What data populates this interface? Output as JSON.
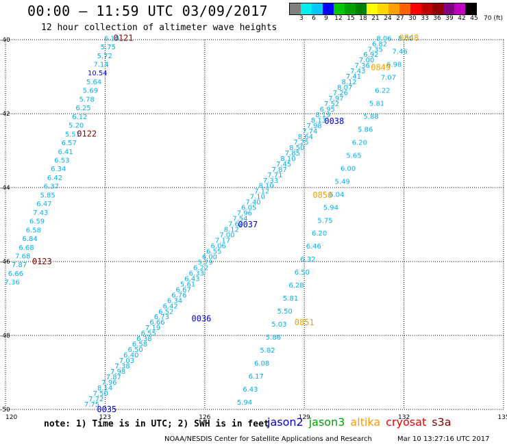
{
  "header": {
    "title": "00:00 – 11:59 UTC 03/09/2017",
    "subtitle": "12 hour collection of altimeter wave heights"
  },
  "colorbar": {
    "colors": [
      "#808080",
      "#00eeee",
      "#00c8ff",
      "#0000ff",
      "#00c800",
      "#00a000",
      "#008000",
      "#ffff00",
      "#ffd700",
      "#ffa000",
      "#ff6000",
      "#ff0000",
      "#c00000",
      "#900000",
      "#800080",
      "#c000c0",
      "#000000"
    ],
    "labels": [
      "3",
      "6",
      "9",
      "12",
      "15",
      "18",
      "21",
      "24",
      "27",
      "30",
      "33",
      "36",
      "39",
      "42",
      "45",
      "70 (ft)"
    ]
  },
  "axes": {
    "x_ticks": [
      "120",
      "123",
      "126",
      "129",
      "132",
      "135"
    ],
    "y_ticks": [
      "-40",
      "-42",
      "-44",
      "-46",
      "-48",
      "-50"
    ]
  },
  "chart_data": {
    "type": "map",
    "grid": true,
    "xlim": [
      120,
      135
    ],
    "ylim": [
      -50,
      -40
    ],
    "passes": [
      {
        "color": "#00aeef",
        "start": [
          123.2,
          -39.95
        ],
        "end": [
          120.2,
          -46.55
        ],
        "values": [
          "6.10",
          "5.75",
          "5.72",
          "7.14",
          "10.54",
          "5.64",
          "5.69",
          "5.78",
          "6.25",
          "6.12",
          "5.20",
          "5.51",
          "6.57",
          "6.41",
          "6.53",
          "6.34",
          "6.42",
          "6.37",
          "5.85",
          "6.47",
          "7.43",
          "6.59",
          "6.58",
          "6.84",
          "6.68",
          "7.68",
          "7.87",
          "6.66",
          "7.36"
        ],
        "value_colors": {
          "4": "#0000ff"
        },
        "times": [
          {
            "label": "0121",
            "lon": 123.55,
            "lat": -39.95,
            "color": "#800000"
          },
          {
            "label": "0122",
            "lon": 122.45,
            "lat": -42.55,
            "color": "#800000"
          },
          {
            "label": "0123",
            "lon": 121.1,
            "lat": -46.0,
            "color": "#800000"
          }
        ]
      },
      {
        "color": "#00aeef",
        "start": [
          131.4,
          -39.95
        ],
        "end": [
          122.6,
          -49.85
        ],
        "values": [
          "8.06",
          "6.82",
          "7.35",
          "6.92",
          "7.00",
          "7.36",
          "7.43",
          "7.41",
          "8.12",
          "8.07",
          "7.26",
          "7.97",
          "7.52",
          "6.95",
          "8.19",
          "8.13",
          "7.98",
          "7.74",
          "8.64",
          "7.25",
          "8.50",
          "7.85",
          "8.10",
          "7.45",
          "7.87",
          "7.71",
          "7.33",
          "8.10",
          "7.12",
          "7.10",
          "7.40",
          "6.05",
          "7.96",
          "7.54",
          "7.62",
          "8.12",
          "7.00",
          "7.17",
          "6.06",
          "6.55",
          "6.00",
          "5.79",
          "6.22",
          "6.33",
          "6.43",
          "5.61",
          "6.67",
          "6.76",
          "6.34",
          "6.42",
          "6.52",
          "6.73",
          "6.66",
          "7.19",
          "6.55",
          "6.38",
          "6.58",
          "6.50",
          "6.40",
          "7.03",
          "7.38",
          "7.98",
          "7.87",
          "7.96",
          "8.14",
          "7.50",
          "7.72",
          "7.75"
        ],
        "times": [
          {
            "label": "0038",
            "lon": 129.9,
            "lat": -42.2,
            "color": "#0000cc"
          },
          {
            "label": "0037",
            "lon": 127.3,
            "lat": -45.0,
            "color": "#0000cc"
          },
          {
            "label": "0036",
            "lon": 125.9,
            "lat": -47.55,
            "color": "#0000cc"
          },
          {
            "label": "0035",
            "lon": 123.05,
            "lat": -50.0,
            "color": "#0000cc"
          }
        ]
      },
      {
        "color": "#00aeef",
        "start": [
          132.05,
          -39.95
        ],
        "end": [
          127.2,
          -49.8
        ],
        "values": [
          "8.00",
          "7.46",
          "6.98",
          "7.07",
          "6.22",
          "5.81",
          "5.88",
          "5.86",
          "6.20",
          "5.65",
          "6.00",
          "5.49",
          "6.04",
          "5.94",
          "5.75",
          "6.20",
          "6.46",
          "6.32",
          "6.50",
          "6.28",
          "5.81",
          "5.50",
          "5.03",
          "5.86",
          "5.82",
          "6.08",
          "6.17",
          "6.43",
          "5.94"
        ],
        "times": [
          {
            "label": "0848",
            "lon": 132.15,
            "lat": -39.95,
            "color": "#f0a000"
          },
          {
            "label": "0849",
            "lon": 131.3,
            "lat": -40.75,
            "color": "#f0a000"
          },
          {
            "label": "0850",
            "lon": 129.55,
            "lat": -44.2,
            "color": "#f0a000"
          },
          {
            "label": "0851",
            "lon": 129.0,
            "lat": -47.65,
            "color": "#f0a000"
          }
        ]
      }
    ]
  },
  "note": "note:  1) Time is in UTC;  2) SWH is in feet",
  "legend": [
    {
      "label": "jason2",
      "color": "#0000cc"
    },
    {
      "label": "jason3",
      "color": "#00a000"
    },
    {
      "label": "altika",
      "color": "#ff9900"
    },
    {
      "label": "cryosat",
      "color": "#ee0000"
    },
    {
      "label": "s3a",
      "color": "#800000"
    }
  ],
  "footer": {
    "source": "NOAA/NESDIS Center for Satellite Applications and Research",
    "timestamp": "Mar 10 13:27:16 UTC 2017"
  }
}
